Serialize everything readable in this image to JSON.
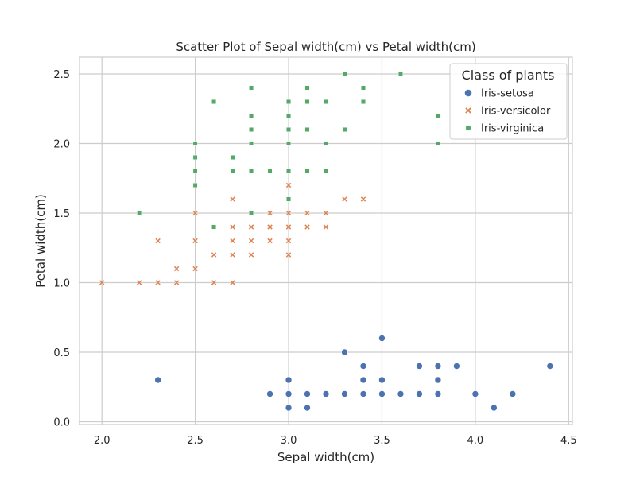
{
  "chart_data": {
    "type": "scatter",
    "title": "Scatter Plot of Sepal width(cm) vs Petal width(cm)",
    "xlabel": "Sepal width(cm)",
    "ylabel": "Petal width(cm)",
    "xlim": [
      1.88,
      4.52
    ],
    "ylim": [
      -0.02,
      2.62
    ],
    "xticks": [
      2.0,
      2.5,
      3.0,
      3.5,
      4.0,
      4.5
    ],
    "xtick_labels": [
      "2.0",
      "2.5",
      "3.0",
      "3.5",
      "4.0",
      "4.5"
    ],
    "yticks": [
      0.0,
      0.5,
      1.0,
      1.5,
      2.0,
      2.5
    ],
    "ytick_labels": [
      "0.0",
      "0.5",
      "1.0",
      "1.5",
      "2.0",
      "2.5"
    ],
    "grid": true,
    "legend": {
      "title": "Class of plants",
      "placement": "top-right"
    },
    "series": [
      {
        "name": "Iris-setosa",
        "marker": "circle",
        "color": "#4c72b0",
        "points": [
          [
            2.3,
            0.3
          ],
          [
            2.9,
            0.2
          ],
          [
            3.0,
            0.1
          ],
          [
            3.0,
            0.2
          ],
          [
            3.0,
            0.3
          ],
          [
            3.1,
            0.1
          ],
          [
            3.1,
            0.2
          ],
          [
            3.2,
            0.2
          ],
          [
            3.3,
            0.2
          ],
          [
            3.3,
            0.5
          ],
          [
            3.4,
            0.2
          ],
          [
            3.4,
            0.3
          ],
          [
            3.4,
            0.4
          ],
          [
            3.5,
            0.2
          ],
          [
            3.5,
            0.3
          ],
          [
            3.5,
            0.6
          ],
          [
            3.6,
            0.2
          ],
          [
            3.7,
            0.2
          ],
          [
            3.7,
            0.4
          ],
          [
            3.8,
            0.2
          ],
          [
            3.8,
            0.3
          ],
          [
            3.8,
            0.4
          ],
          [
            3.9,
            0.4
          ],
          [
            4.0,
            0.2
          ],
          [
            4.1,
            0.1
          ],
          [
            4.2,
            0.2
          ],
          [
            4.4,
            0.4
          ]
        ]
      },
      {
        "name": "Iris-versicolor",
        "marker": "x",
        "color": "#dd8452",
        "points": [
          [
            2.0,
            1.0
          ],
          [
            2.2,
            1.0
          ],
          [
            2.2,
            1.5
          ],
          [
            2.3,
            1.0
          ],
          [
            2.3,
            1.3
          ],
          [
            2.4,
            1.0
          ],
          [
            2.4,
            1.1
          ],
          [
            2.5,
            1.1
          ],
          [
            2.5,
            1.3
          ],
          [
            2.5,
            1.5
          ],
          [
            2.6,
            1.0
          ],
          [
            2.6,
            1.2
          ],
          [
            2.7,
            1.0
          ],
          [
            2.7,
            1.2
          ],
          [
            2.7,
            1.3
          ],
          [
            2.7,
            1.4
          ],
          [
            2.7,
            1.6
          ],
          [
            2.8,
            1.2
          ],
          [
            2.8,
            1.3
          ],
          [
            2.8,
            1.4
          ],
          [
            2.8,
            1.5
          ],
          [
            2.9,
            1.3
          ],
          [
            2.9,
            1.4
          ],
          [
            2.9,
            1.5
          ],
          [
            3.0,
            1.2
          ],
          [
            3.0,
            1.3
          ],
          [
            3.0,
            1.4
          ],
          [
            3.0,
            1.5
          ],
          [
            3.0,
            1.7
          ],
          [
            3.1,
            1.4
          ],
          [
            3.1,
            1.5
          ],
          [
            3.2,
            1.4
          ],
          [
            3.2,
            1.5
          ],
          [
            3.2,
            1.8
          ],
          [
            3.3,
            1.6
          ],
          [
            3.4,
            1.6
          ]
        ]
      },
      {
        "name": "Iris-virginica",
        "marker": "square",
        "color": "#55a868",
        "points": [
          [
            2.2,
            1.5
          ],
          [
            2.5,
            1.7
          ],
          [
            2.5,
            1.8
          ],
          [
            2.5,
            1.9
          ],
          [
            2.5,
            2.0
          ],
          [
            2.6,
            1.4
          ],
          [
            2.6,
            2.3
          ],
          [
            2.7,
            1.8
          ],
          [
            2.7,
            1.9
          ],
          [
            2.8,
            1.5
          ],
          [
            2.8,
            1.8
          ],
          [
            2.8,
            2.0
          ],
          [
            2.8,
            2.1
          ],
          [
            2.8,
            2.2
          ],
          [
            2.8,
            2.4
          ],
          [
            2.9,
            1.8
          ],
          [
            3.0,
            1.6
          ],
          [
            3.0,
            1.8
          ],
          [
            3.0,
            2.0
          ],
          [
            3.0,
            2.1
          ],
          [
            3.0,
            2.2
          ],
          [
            3.0,
            2.3
          ],
          [
            3.1,
            1.8
          ],
          [
            3.1,
            2.1
          ],
          [
            3.1,
            2.3
          ],
          [
            3.1,
            2.4
          ],
          [
            3.2,
            1.8
          ],
          [
            3.2,
            2.0
          ],
          [
            3.2,
            2.3
          ],
          [
            3.3,
            2.1
          ],
          [
            3.3,
            2.5
          ],
          [
            3.4,
            2.3
          ],
          [
            3.4,
            2.4
          ],
          [
            3.6,
            2.5
          ],
          [
            3.8,
            2.0
          ],
          [
            3.8,
            2.2
          ]
        ]
      }
    ]
  }
}
